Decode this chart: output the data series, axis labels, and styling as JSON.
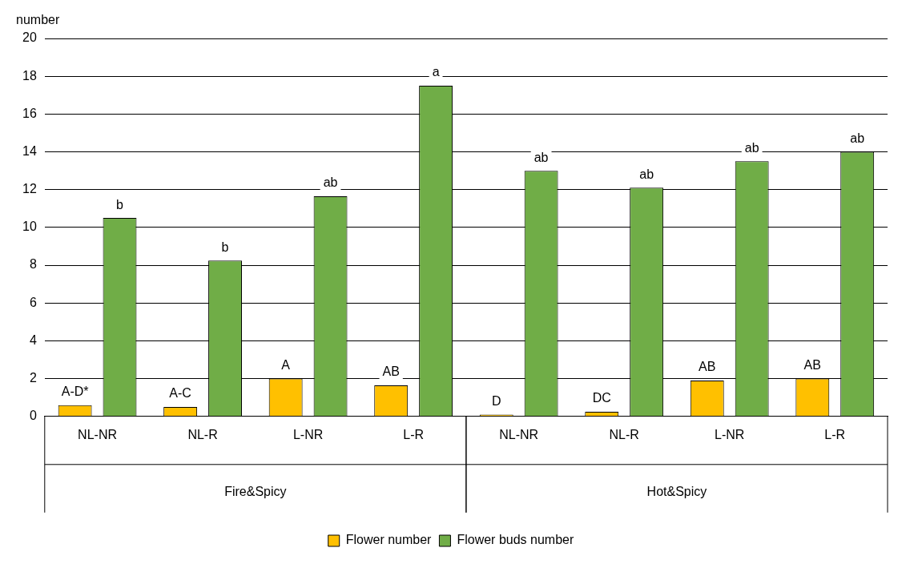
{
  "chart_data": {
    "type": "bar",
    "ylabel": "number",
    "categories": [
      "NL-NR",
      "NL-R",
      "L-NR",
      "L-R",
      "NL-NR",
      "NL-R",
      "L-NR",
      "L-R"
    ],
    "series": [
      {
        "name": "Flower number",
        "color": "#ffc000",
        "values": [
          0.6,
          0.5,
          2.0,
          1.65,
          0.1,
          0.25,
          1.9,
          2.0
        ],
        "value_labels": [
          "A-D*",
          "A-C",
          "A",
          "AB",
          "D",
          "DC",
          "AB",
          "AB"
        ]
      },
      {
        "name": "Flower buds number",
        "color": "#70ad47",
        "values": [
          10.5,
          8.25,
          11.65,
          17.5,
          13.0,
          12.1,
          13.5,
          14.0
        ],
        "value_labels": [
          "b",
          "b",
          "ab",
          "a",
          "ab",
          "ab",
          "ab",
          "ab"
        ]
      }
    ],
    "annotations": [
      "Fire&Spicy",
      "Hot&Spicy"
    ],
    "ylim": [
      0,
      20
    ],
    "yticks": [
      0,
      2,
      4,
      6,
      8,
      10,
      12,
      14,
      16,
      18,
      20
    ],
    "grid": "y",
    "legend": "bottom"
  }
}
